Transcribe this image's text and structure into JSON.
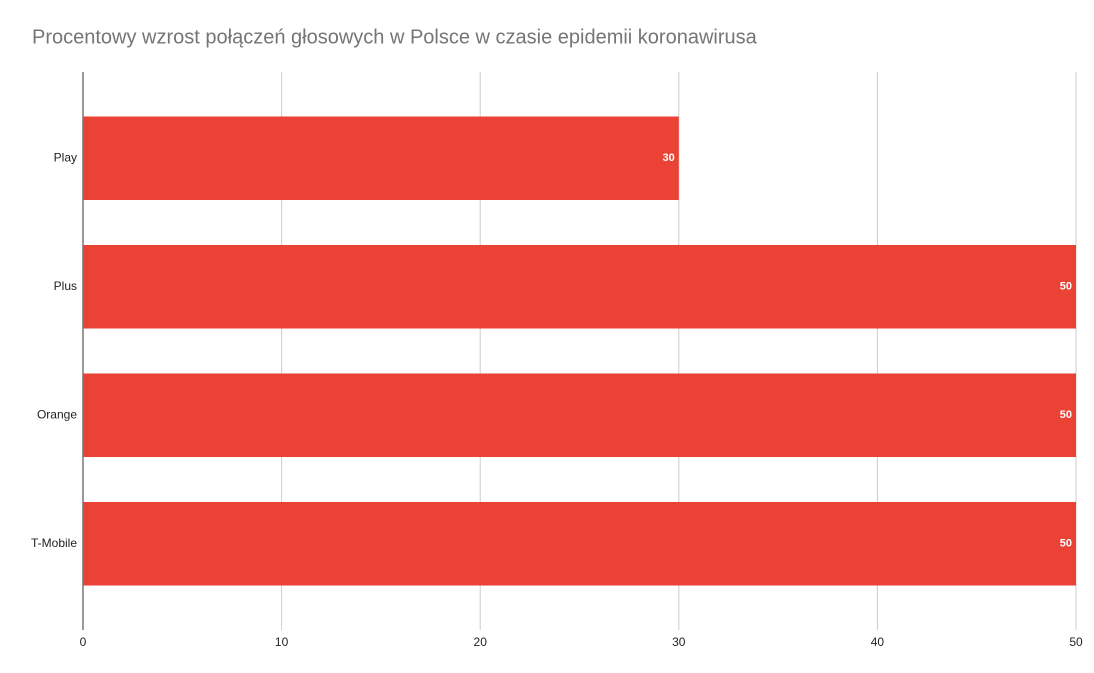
{
  "chart_data": {
    "type": "bar",
    "orientation": "horizontal",
    "title": "Procentowy wzrost połączeń głosowych w Polsce w czasie epidemii koronawirusa",
    "categories": [
      "Play",
      "Plus",
      "Orange",
      "T-Mobile"
    ],
    "values": [
      30,
      50,
      50,
      50
    ],
    "color": "#ea4335",
    "xlim": [
      0,
      50
    ],
    "xticks": [
      0,
      10,
      20,
      30,
      40,
      50
    ],
    "grid": true
  }
}
